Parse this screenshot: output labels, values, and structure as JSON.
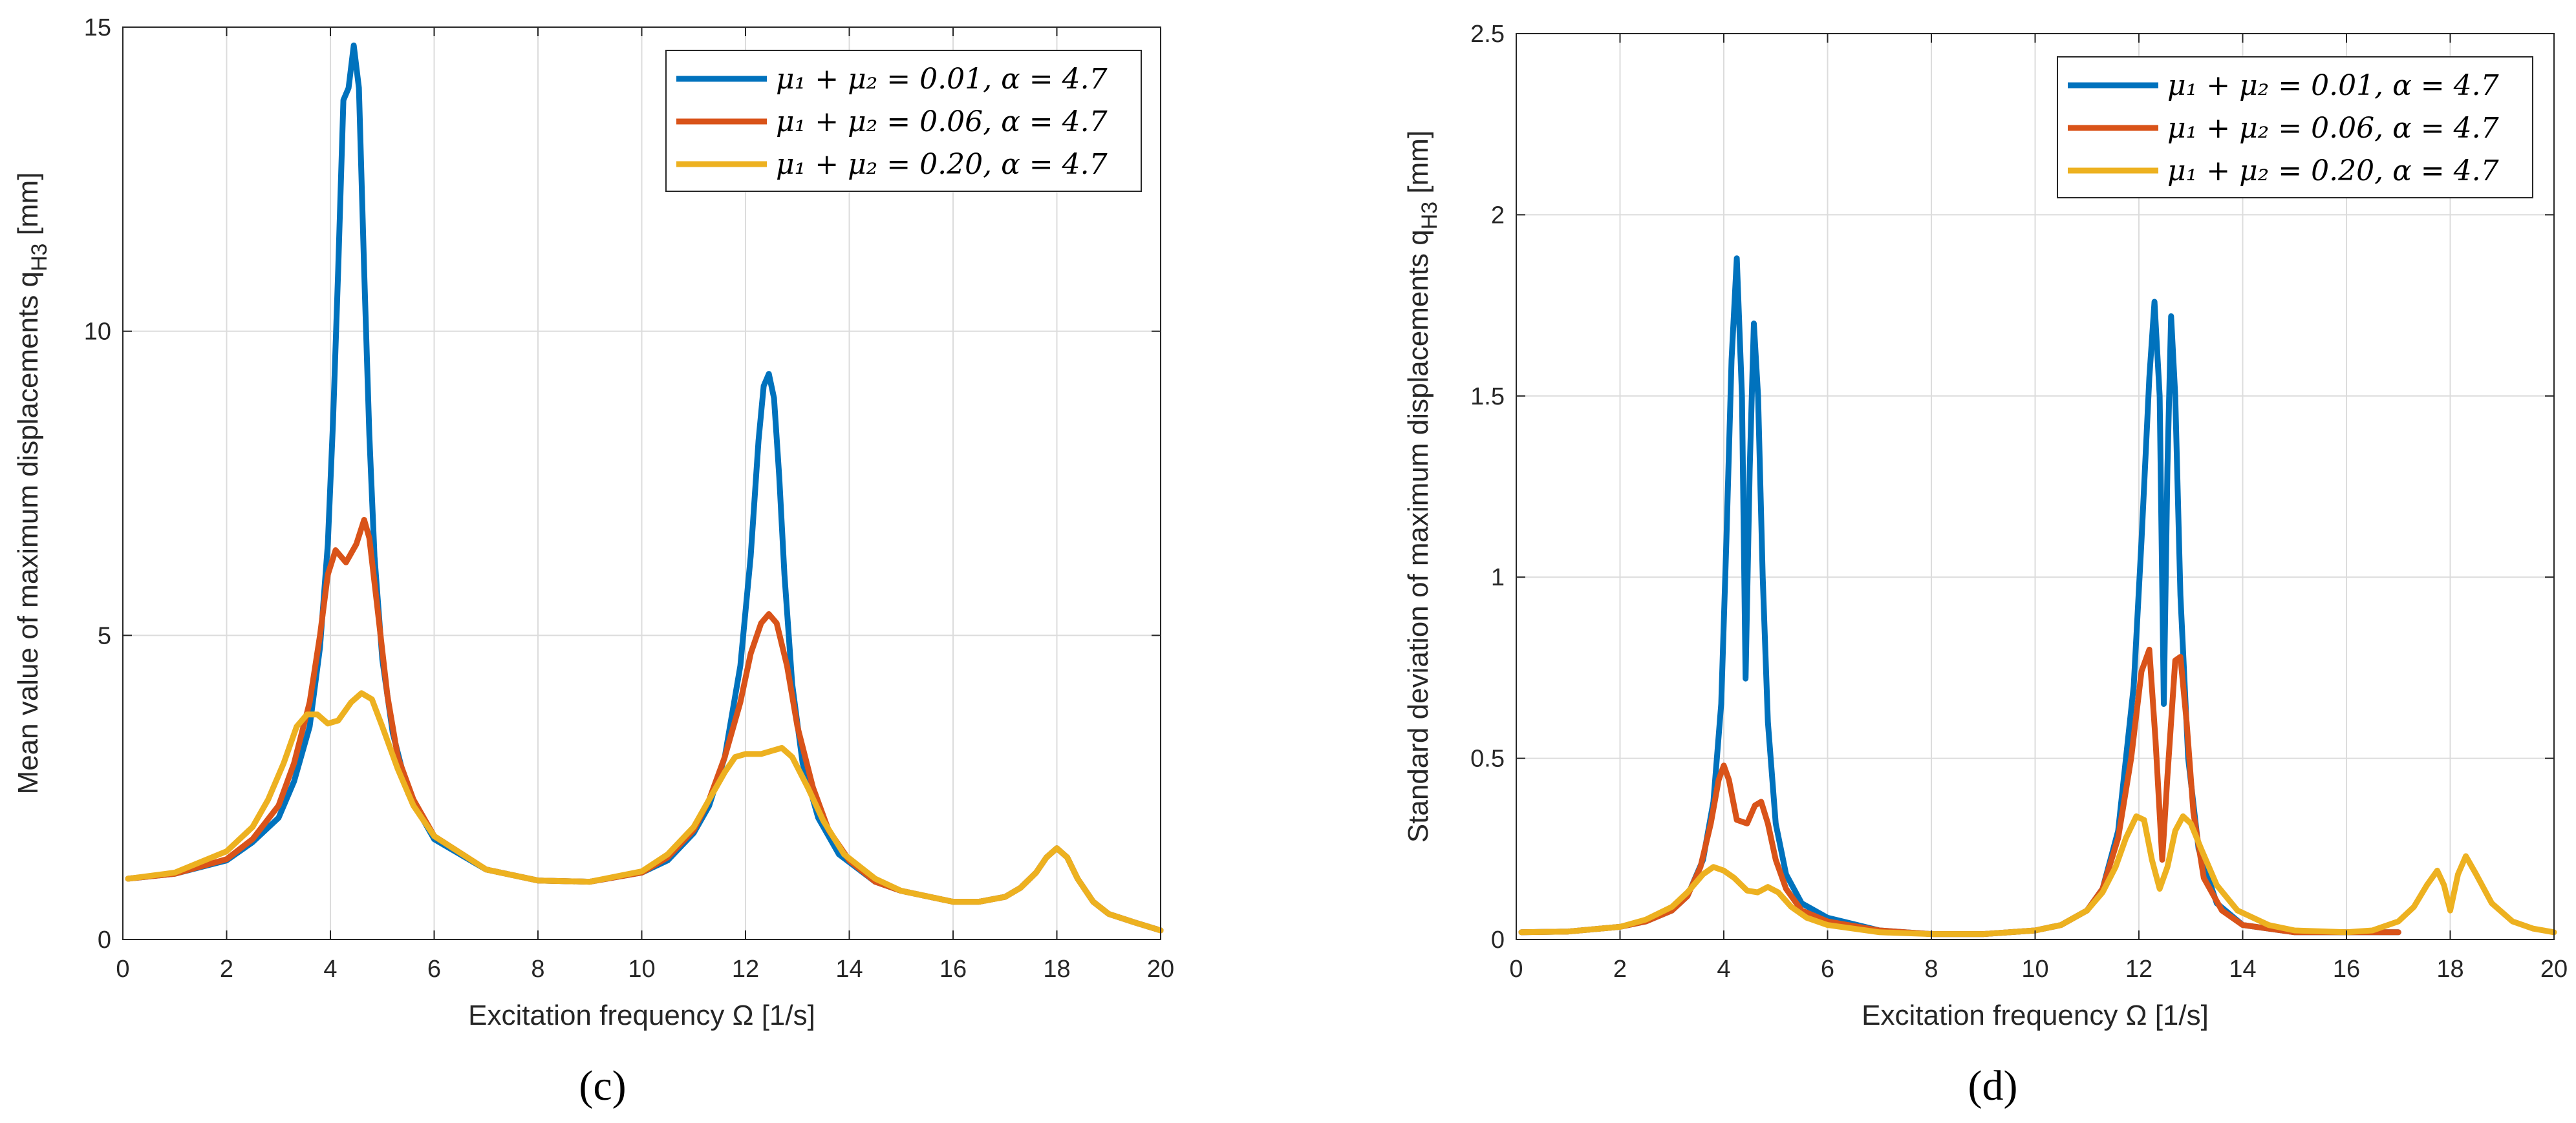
{
  "chart_data": [
    {
      "type": "line",
      "panel_label": "(c)",
      "xlabel": "Excitation frequency Ω [1/s]",
      "ylabel_main": "Mean value of maximum displacements q",
      "ylabel_sub": "H3",
      "ylabel_unit": " [mm]",
      "xlim": [
        0,
        20
      ],
      "ylim": [
        0,
        15
      ],
      "xticks": [
        0,
        2,
        4,
        6,
        8,
        10,
        12,
        14,
        16,
        18,
        20
      ],
      "yticks": [
        0,
        5,
        10,
        15
      ],
      "grid": true,
      "legend_position": "top-right",
      "series": [
        {
          "name": "μ₁ + μ₂ = 0.01, α = 4.7",
          "color": "#0072BD",
          "x": [
            0.1,
            1,
            2,
            2.5,
            3,
            3.3,
            3.6,
            3.8,
            3.95,
            4.05,
            4.15,
            4.25,
            4.35,
            4.45,
            4.55,
            4.65,
            4.75,
            4.85,
            5.0,
            5.2,
            5.5,
            6,
            7,
            8,
            9,
            10,
            10.5,
            11,
            11.3,
            11.6,
            11.9,
            12.1,
            12.25,
            12.35,
            12.45,
            12.55,
            12.65,
            12.75,
            12.9,
            13.1,
            13.4,
            13.8,
            14.5,
            15,
            16,
            16.5,
            17,
            17.3,
            17.6,
            17.8,
            18.0,
            18.2,
            18.4,
            18.7,
            19,
            19.5,
            20
          ],
          "y": [
            1.0,
            1.08,
            1.3,
            1.6,
            2.0,
            2.6,
            3.5,
            4.8,
            6.5,
            8.5,
            11.0,
            13.8,
            14.0,
            14.7,
            14.0,
            11.0,
            8.3,
            6.3,
            4.6,
            3.4,
            2.4,
            1.65,
            1.15,
            0.97,
            0.95,
            1.1,
            1.3,
            1.75,
            2.2,
            3.0,
            4.5,
            6.3,
            8.2,
            9.1,
            9.3,
            8.9,
            7.6,
            6.0,
            4.2,
            2.9,
            2.0,
            1.4,
            0.95,
            0.8,
            0.62,
            0.62,
            0.7,
            0.85,
            1.1,
            1.35,
            1.5,
            1.35,
            1.0,
            0.62,
            0.42,
            0.28,
            0.15
          ]
        },
        {
          "name": "μ₁ + μ₂ = 0.06, α = 4.7",
          "color": "#D95319",
          "x": [
            0.1,
            1,
            2,
            2.5,
            3,
            3.3,
            3.6,
            3.8,
            3.95,
            4.1,
            4.3,
            4.5,
            4.65,
            4.75,
            4.9,
            5.1,
            5.3,
            5.6,
            6,
            7,
            8,
            9,
            10,
            10.5,
            11,
            11.3,
            11.6,
            11.9,
            12.1,
            12.3,
            12.45,
            12.6,
            12.8,
            13.0,
            13.3,
            13.6,
            14,
            14.5,
            15,
            16,
            16.5,
            17,
            17.3,
            17.6,
            17.8,
            18.0,
            18.2,
            18.4,
            18.7,
            19,
            19.5,
            20
          ],
          "y": [
            1.0,
            1.08,
            1.32,
            1.65,
            2.2,
            2.9,
            3.9,
            5.0,
            6.0,
            6.4,
            6.2,
            6.5,
            6.9,
            6.6,
            5.5,
            4.0,
            3.0,
            2.3,
            1.7,
            1.15,
            0.97,
            0.95,
            1.1,
            1.35,
            1.8,
            2.3,
            3.0,
            3.9,
            4.7,
            5.2,
            5.35,
            5.2,
            4.5,
            3.5,
            2.5,
            1.8,
            1.3,
            0.95,
            0.8,
            0.62,
            0.62,
            0.7,
            0.85,
            1.1,
            1.35,
            1.5,
            1.35,
            1.0,
            0.62,
            0.42,
            0.28,
            0.15
          ]
        },
        {
          "name": "μ₁ + μ₂ = 0.20, α = 4.7",
          "color": "#EDB120",
          "x": [
            0.1,
            1,
            2,
            2.5,
            2.8,
            3.1,
            3.35,
            3.55,
            3.75,
            3.95,
            4.15,
            4.4,
            4.6,
            4.8,
            5.0,
            5.3,
            5.6,
            6,
            7,
            8,
            9,
            10,
            10.5,
            11,
            11.3,
            11.6,
            11.8,
            12.0,
            12.3,
            12.5,
            12.7,
            12.9,
            13.2,
            13.5,
            13.9,
            14.5,
            15,
            16,
            16.5,
            17,
            17.3,
            17.6,
            17.8,
            18.0,
            18.2,
            18.4,
            18.7,
            19,
            19.5,
            20
          ],
          "y": [
            1.0,
            1.1,
            1.45,
            1.85,
            2.3,
            2.9,
            3.5,
            3.7,
            3.7,
            3.55,
            3.6,
            3.9,
            4.05,
            3.95,
            3.5,
            2.8,
            2.2,
            1.7,
            1.15,
            0.97,
            0.95,
            1.12,
            1.4,
            1.85,
            2.3,
            2.75,
            3.0,
            3.05,
            3.05,
            3.1,
            3.15,
            3.0,
            2.5,
            1.95,
            1.4,
            1.0,
            0.8,
            0.62,
            0.62,
            0.7,
            0.85,
            1.1,
            1.35,
            1.5,
            1.35,
            1.0,
            0.62,
            0.42,
            0.28,
            0.15
          ]
        }
      ]
    },
    {
      "type": "line",
      "panel_label": "(d)",
      "xlabel": "Excitation frequency Ω [1/s]",
      "ylabel_main": "Standard deviation of maximum displacements q",
      "ylabel_sub": "H3",
      "ylabel_unit": " [mm]",
      "xlim": [
        0,
        20
      ],
      "ylim": [
        0,
        2.5
      ],
      "xticks": [
        0,
        2,
        4,
        6,
        8,
        10,
        12,
        14,
        16,
        18,
        20
      ],
      "yticks": [
        0,
        0.5,
        1,
        1.5,
        2,
        2.5
      ],
      "grid": true,
      "legend_position": "top-right",
      "series": [
        {
          "name": "μ₁ + μ₂ = 0.01, α = 4.7",
          "color": "#0072BD",
          "x": [
            0.1,
            1,
            2,
            2.5,
            3,
            3.3,
            3.6,
            3.8,
            3.95,
            4.05,
            4.15,
            4.25,
            4.35,
            4.42,
            4.5,
            4.58,
            4.66,
            4.75,
            4.85,
            5.0,
            5.2,
            5.5,
            6,
            7,
            8,
            9,
            10,
            10.5,
            11,
            11.3,
            11.6,
            11.9,
            12.05,
            12.2,
            12.3,
            12.4,
            12.48,
            12.55,
            12.62,
            12.7,
            12.8,
            12.95,
            13.15,
            13.5,
            14,
            15,
            16,
            17
          ],
          "y": [
            0.02,
            0.022,
            0.035,
            0.05,
            0.08,
            0.12,
            0.22,
            0.38,
            0.65,
            1.1,
            1.6,
            1.88,
            1.5,
            0.72,
            1.3,
            1.7,
            1.5,
            1.0,
            0.6,
            0.32,
            0.18,
            0.1,
            0.06,
            0.025,
            0.015,
            0.015,
            0.025,
            0.04,
            0.08,
            0.14,
            0.3,
            0.7,
            1.1,
            1.55,
            1.76,
            1.5,
            0.65,
            1.3,
            1.72,
            1.5,
            0.95,
            0.5,
            0.25,
            0.1,
            0.04,
            0.02,
            0.02,
            0.02
          ]
        },
        {
          "name": "μ₁ + μ₂ = 0.06, α = 4.7",
          "color": "#D95319",
          "x": [
            0.1,
            1,
            2,
            2.5,
            3,
            3.3,
            3.55,
            3.75,
            3.9,
            4.0,
            4.1,
            4.25,
            4.45,
            4.6,
            4.72,
            4.85,
            5.0,
            5.2,
            5.5,
            6,
            7,
            8,
            9,
            10,
            10.5,
            11,
            11.3,
            11.6,
            11.85,
            12.05,
            12.2,
            12.32,
            12.45,
            12.55,
            12.7,
            12.8,
            12.92,
            13.05,
            13.25,
            13.6,
            14,
            15,
            16,
            17
          ],
          "y": [
            0.02,
            0.022,
            0.035,
            0.05,
            0.08,
            0.12,
            0.2,
            0.32,
            0.44,
            0.48,
            0.44,
            0.33,
            0.32,
            0.37,
            0.38,
            0.32,
            0.22,
            0.14,
            0.08,
            0.05,
            0.025,
            0.015,
            0.015,
            0.025,
            0.04,
            0.08,
            0.14,
            0.28,
            0.5,
            0.74,
            0.8,
            0.55,
            0.22,
            0.45,
            0.77,
            0.78,
            0.6,
            0.35,
            0.17,
            0.08,
            0.04,
            0.02,
            0.02,
            0.02
          ]
        },
        {
          "name": "μ₁ + μ₂ = 0.20, α = 4.7",
          "color": "#EDB120",
          "x": [
            0.1,
            1,
            2,
            2.5,
            3,
            3.3,
            3.6,
            3.8,
            4.0,
            4.2,
            4.45,
            4.65,
            4.85,
            5.05,
            5.3,
            5.6,
            6,
            7,
            8,
            9,
            10,
            10.5,
            11,
            11.3,
            11.55,
            11.75,
            11.95,
            12.1,
            12.25,
            12.4,
            12.55,
            12.7,
            12.85,
            13.0,
            13.2,
            13.5,
            13.9,
            14.5,
            15,
            16,
            16.5,
            17,
            17.3,
            17.55,
            17.75,
            17.88,
            18.0,
            18.15,
            18.3,
            18.5,
            18.8,
            19.2,
            19.6,
            20
          ],
          "y": [
            0.02,
            0.022,
            0.035,
            0.055,
            0.09,
            0.13,
            0.18,
            0.2,
            0.19,
            0.17,
            0.135,
            0.13,
            0.145,
            0.13,
            0.09,
            0.06,
            0.04,
            0.02,
            0.015,
            0.015,
            0.025,
            0.04,
            0.08,
            0.13,
            0.2,
            0.28,
            0.34,
            0.33,
            0.22,
            0.14,
            0.2,
            0.3,
            0.34,
            0.32,
            0.25,
            0.15,
            0.08,
            0.04,
            0.025,
            0.02,
            0.025,
            0.05,
            0.09,
            0.15,
            0.19,
            0.15,
            0.08,
            0.18,
            0.23,
            0.18,
            0.1,
            0.05,
            0.03,
            0.02
          ]
        }
      ]
    }
  ]
}
